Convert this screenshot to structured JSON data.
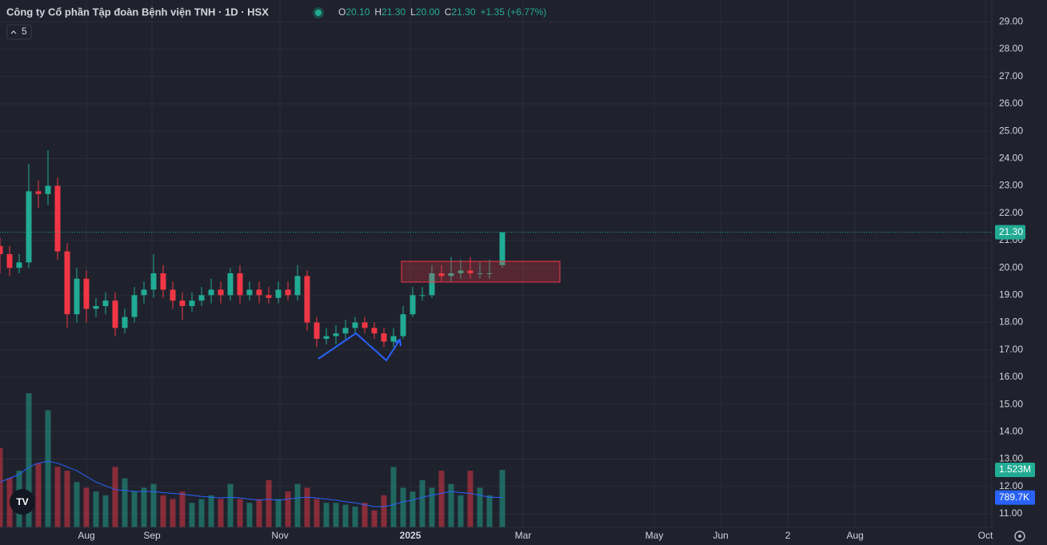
{
  "chart_data": {
    "type": "candlestick",
    "title": "Công ty Cổ phần Tập đoàn Bệnh viện TNH · 1D · HSX",
    "legend": [
      {
        "label": "O",
        "value": "20.10"
      },
      {
        "label": "H",
        "value": "21.30"
      },
      {
        "label": "L",
        "value": "20.00"
      },
      {
        "label": "C",
        "value": "21.30"
      }
    ],
    "change": "+1.35 (+6.77%)",
    "indicator_badge": "5",
    "up_color": "#22ab94",
    "down_color": "#f23645",
    "ma_color": "#2962ff",
    "x": [
      0,
      3,
      6,
      9,
      12,
      15,
      18,
      21,
      24,
      27,
      30,
      33,
      36,
      39,
      42,
      45,
      48,
      51,
      54,
      57,
      60,
      63,
      66,
      69,
      72,
      75,
      78,
      81,
      84,
      87,
      90,
      93,
      96,
      99,
      102,
      105,
      108,
      111,
      114,
      117,
      120,
      123,
      126,
      129,
      132,
      135,
      138,
      141,
      144,
      147,
      150,
      153,
      157
    ],
    "open": [
      20.8,
      20.5,
      20.0,
      20.2,
      22.8,
      22.7,
      23.0,
      20.6,
      18.3,
      19.6,
      18.5,
      18.6,
      18.8,
      17.8,
      18.2,
      19.0,
      19.2,
      19.8,
      19.2,
      18.8,
      18.6,
      18.8,
      19.0,
      19.2,
      19.0,
      19.8,
      19.0,
      19.2,
      19.0,
      18.9,
      19.2,
      19.0,
      19.7,
      18.0,
      17.4,
      17.5,
      17.6,
      17.8,
      18.0,
      17.8,
      17.6,
      17.3,
      17.5,
      18.3,
      19.0,
      19.0,
      19.8,
      19.7,
      19.8,
      19.9,
      19.8,
      19.8,
      20.1
    ],
    "high": [
      21.1,
      20.8,
      20.5,
      23.8,
      23.2,
      24.3,
      23.3,
      20.9,
      20.0,
      19.9,
      18.9,
      19.1,
      19.1,
      18.5,
      19.3,
      19.5,
      20.5,
      20.1,
      19.5,
      19.1,
      19.1,
      19.3,
      19.6,
      19.5,
      20.0,
      20.1,
      19.5,
      19.5,
      19.3,
      19.5,
      19.5,
      20.1,
      19.9,
      18.2,
      17.8,
      17.9,
      18.1,
      18.2,
      18.2,
      18.0,
      17.8,
      17.8,
      18.6,
      19.3,
      19.3,
      20.1,
      20.1,
      20.4,
      20.3,
      20.4,
      20.2,
      20.3,
      21.3
    ],
    "low": [
      19.8,
      19.7,
      19.8,
      20.0,
      22.2,
      22.3,
      20.3,
      17.8,
      18.0,
      18.0,
      18.2,
      18.3,
      17.5,
      17.6,
      18.0,
      18.7,
      18.9,
      18.9,
      18.5,
      18.1,
      18.4,
      18.6,
      18.7,
      18.7,
      18.8,
      18.7,
      18.8,
      18.7,
      18.7,
      18.7,
      18.8,
      18.8,
      17.7,
      17.1,
      17.2,
      17.2,
      17.4,
      17.6,
      17.6,
      17.4,
      17.1,
      17.1,
      17.4,
      18.2,
      18.8,
      18.9,
      19.5,
      19.5,
      19.6,
      19.6,
      19.6,
      19.6,
      20.0
    ],
    "close": [
      20.5,
      20.0,
      20.2,
      22.8,
      22.7,
      23.0,
      20.6,
      18.3,
      19.6,
      18.5,
      18.6,
      18.8,
      17.8,
      18.2,
      19.0,
      19.2,
      19.8,
      19.2,
      18.8,
      18.6,
      18.8,
      19.0,
      19.2,
      19.0,
      19.8,
      19.0,
      19.2,
      19.0,
      18.9,
      19.2,
      19.0,
      19.7,
      18.0,
      17.4,
      17.5,
      17.6,
      17.8,
      18.0,
      17.8,
      17.6,
      17.3,
      17.5,
      18.3,
      19.0,
      19.0,
      19.8,
      19.7,
      19.8,
      19.9,
      19.8,
      19.8,
      19.8,
      21.3
    ],
    "volume": [
      2100000,
      1300000,
      1500000,
      3550000,
      1700000,
      3100000,
      1600000,
      1500000,
      1200000,
      1050000,
      950000,
      850000,
      1600000,
      1300000,
      950000,
      1050000,
      1150000,
      850000,
      750000,
      950000,
      650000,
      750000,
      850000,
      750000,
      1150000,
      750000,
      650000,
      750000,
      1250000,
      750000,
      950000,
      1150000,
      1050000,
      750000,
      650000,
      650000,
      600000,
      550000,
      650000,
      450000,
      850000,
      1600000,
      1050000,
      950000,
      1250000,
      1050000,
      1500000,
      1150000,
      850000,
      1500000,
      1050000,
      850000,
      1523000
    ],
    "volume_ma": [
      1200000,
      1300000,
      1400000,
      1600000,
      1700000,
      1750000,
      1700000,
      1600000,
      1500000,
      1350000,
      1200000,
      1100000,
      1000000,
      980000,
      950000,
      950000,
      950000,
      920000,
      900000,
      880000,
      850000,
      820000,
      800000,
      780000,
      800000,
      780000,
      750000,
      720000,
      750000,
      720000,
      750000,
      780000,
      800000,
      780000,
      750000,
      720000,
      680000,
      650000,
      600000,
      550000,
      550000,
      600000,
      680000,
      720000,
      800000,
      850000,
      900000,
      950000,
      920000,
      900000,
      850000,
      800000,
      789700
    ],
    "volume_label": "1.523M",
    "volume_ma_label": "789.7K",
    "last_price_label": "21.30",
    "xlim": [
      0,
      310
    ],
    "ylim": [
      10.5,
      29.8
    ],
    "vlim": [
      0,
      13950000
    ],
    "xticks": [
      {
        "value": 27,
        "label": "Aug"
      },
      {
        "value": 47.5,
        "label": "Sep"
      },
      {
        "value": 87.5,
        "label": "Nov"
      },
      {
        "value": 128.25,
        "label": "2025"
      },
      {
        "value": 163.5,
        "label": "Mar"
      },
      {
        "value": 204.5,
        "label": "May"
      },
      {
        "value": 225.25,
        "label": "Jun"
      },
      {
        "value": 246.25,
        "label": "2"
      },
      {
        "value": 267.25,
        "label": "Aug"
      },
      {
        "value": 308,
        "label": "Oct"
      }
    ],
    "yticks": [
      {
        "value": 11,
        "label": "11.00"
      },
      {
        "value": 12,
        "label": "12.00"
      },
      {
        "value": 13,
        "label": "13.00"
      },
      {
        "value": 14,
        "label": "14.00"
      },
      {
        "value": 15,
        "label": "15.00"
      },
      {
        "value": 16,
        "label": "16.00"
      },
      {
        "value": 17,
        "label": "17.00"
      },
      {
        "value": 18,
        "label": "18.00"
      },
      {
        "value": 19,
        "label": "19.00"
      },
      {
        "value": 20,
        "label": "20.00"
      },
      {
        "value": 21,
        "label": "21.00"
      },
      {
        "value": 22,
        "label": "22.00"
      },
      {
        "value": 23,
        "label": "23.00"
      },
      {
        "value": 24,
        "label": "24.00"
      },
      {
        "value": 25,
        "label": "25.00"
      },
      {
        "value": 26,
        "label": "26.00"
      },
      {
        "value": 27,
        "label": "27.00"
      },
      {
        "value": 28,
        "label": "28.00"
      },
      {
        "value": 29,
        "label": "29.00"
      }
    ],
    "grid": true
  }
}
